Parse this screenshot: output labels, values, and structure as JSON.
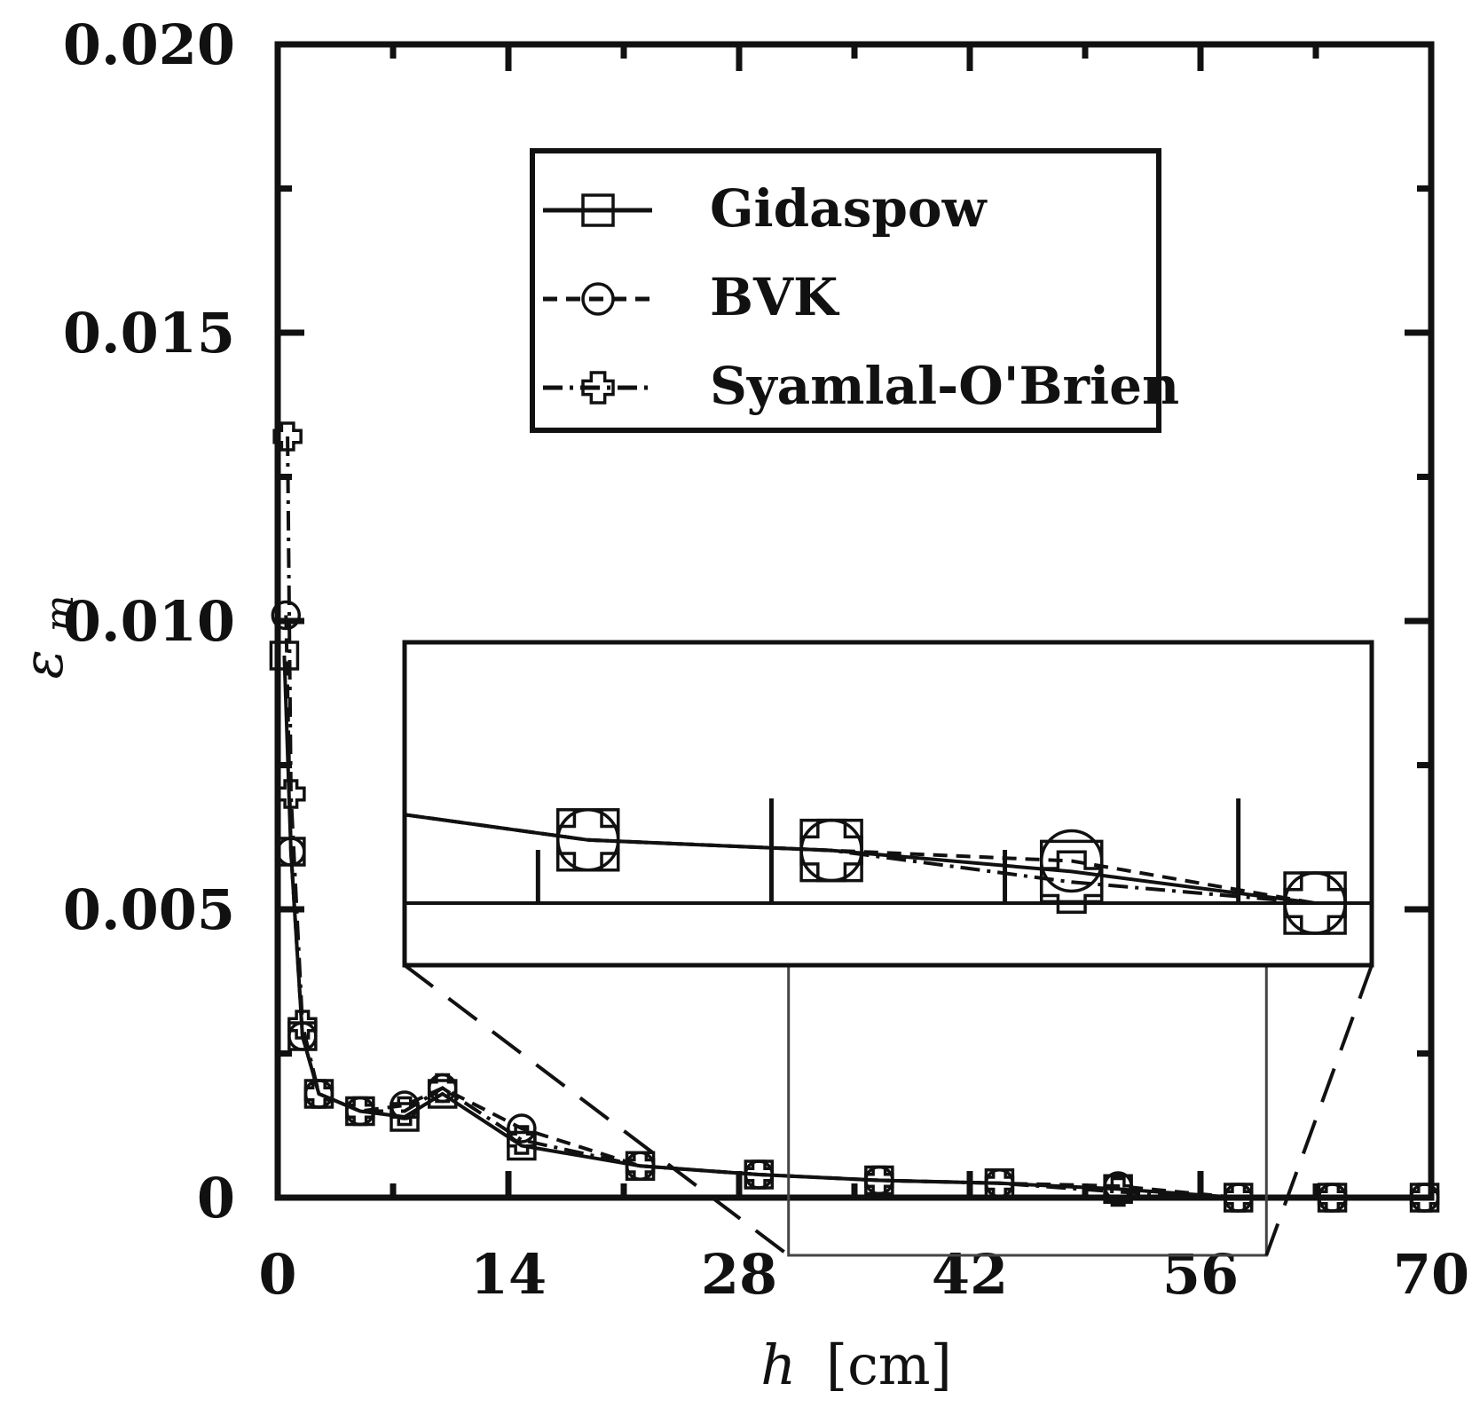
{
  "chart_data": {
    "type": "line",
    "xlabel_var": "h",
    "xlabel_unit": "[cm]",
    "ylabel_var": "ε",
    "ylabel_sub": "m",
    "xlim": [
      0,
      70
    ],
    "ylim": [
      0,
      0.02
    ],
    "x_ticks": [
      "0",
      "14",
      "28",
      "42",
      "56",
      "70"
    ],
    "y_ticks": [
      "0",
      "0.005",
      "0.010",
      "0.015",
      "0.020"
    ],
    "legend_position": "top-center",
    "series": [
      {
        "name": "Gidaspow",
        "line_style": "solid",
        "marker": "square",
        "x": [
          0.4,
          0.8,
          1.5,
          2.5,
          5,
          7.7,
          10,
          14.8,
          22,
          29.2,
          36.5,
          43.8,
          51,
          58.3,
          64,
          69.6
        ],
        "y": [
          0.0094,
          0.006,
          0.0028,
          0.0018,
          0.0015,
          0.0014,
          0.0018,
          0.0009,
          0.00055,
          0.0004,
          0.0003,
          0.00025,
          0.00015,
          0.0,
          0.0,
          0.0
        ]
      },
      {
        "name": "BVK",
        "line_style": "dashed",
        "marker": "circle",
        "x": [
          0.5,
          0.8,
          1.5,
          2.5,
          5,
          7.7,
          10,
          14.8,
          22,
          29.2,
          36.5,
          43.8,
          51,
          58.3,
          64,
          69.6
        ],
        "y": [
          0.0101,
          0.006,
          0.0028,
          0.0018,
          0.0015,
          0.0016,
          0.0019,
          0.0012,
          0.00055,
          0.0004,
          0.0003,
          0.00025,
          0.0002,
          0.0,
          0.0,
          0.0
        ]
      },
      {
        "name": "Syamlal-O'Brien",
        "line_style": "dash-dot",
        "marker": "plus",
        "x": [
          0.6,
          0.8,
          1.5,
          2.5,
          5,
          7.7,
          10,
          14.8,
          22,
          29.2,
          36.5,
          43.8,
          51,
          58.3,
          64,
          69.6
        ],
        "y": [
          0.0132,
          0.007,
          0.003,
          0.0018,
          0.0015,
          0.0015,
          0.0019,
          0.001,
          0.00055,
          0.0004,
          0.0003,
          0.00025,
          0.0001,
          0.0,
          0.0,
          0.0
        ]
      }
    ],
    "inset": {
      "zoom_region_x": [
        31,
        60
      ],
      "zoom_region_y": [
        -0.001,
        0.0045
      ],
      "points_x": [
        36.5,
        43.8,
        51,
        58.3
      ]
    }
  }
}
